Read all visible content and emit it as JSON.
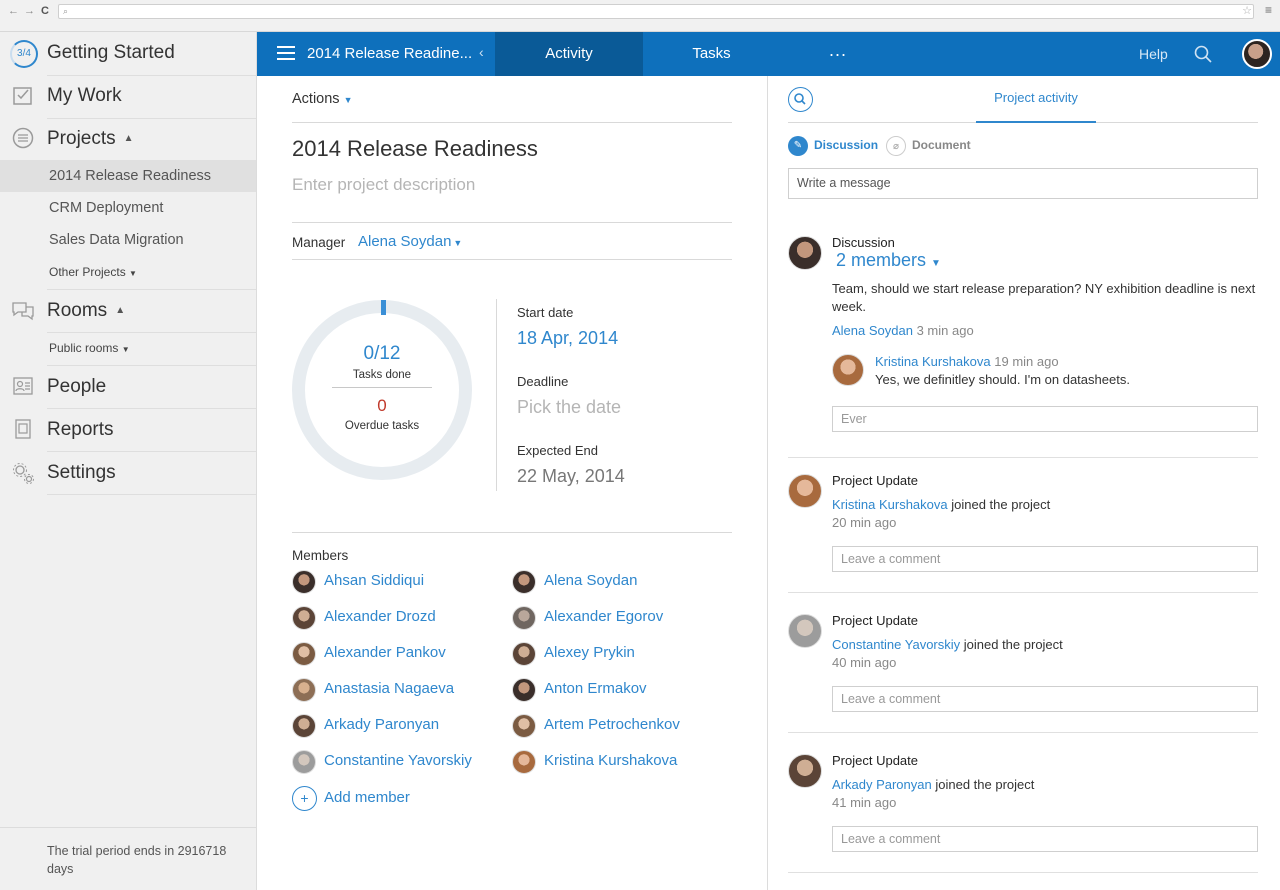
{
  "browser": {
    "nav_back": "←",
    "nav_fwd": "→",
    "reload": "C",
    "search_glyph": "⌕",
    "star": "☆",
    "menu": "≡"
  },
  "sidebar": {
    "progress": "3/4",
    "items": [
      {
        "label": "Getting Started"
      },
      {
        "label": "My Work"
      },
      {
        "label": "Projects"
      },
      {
        "label": "Rooms"
      },
      {
        "label": "People"
      },
      {
        "label": "Reports"
      },
      {
        "label": "Settings"
      }
    ],
    "projects": [
      "2014 Release Readiness",
      "CRM Deployment",
      "Sales Data Migration"
    ],
    "other_projects": "Other Projects",
    "public_rooms": "Public rooms",
    "trial": "The trial period ends in 2916718 days"
  },
  "topbar": {
    "project_title": "2014 Release Readine...",
    "tab_activity": "Activity",
    "tab_tasks": "Tasks",
    "more": "...",
    "help": "Help"
  },
  "project": {
    "actions": "Actions",
    "title": "2014 Release Readiness",
    "description_placeholder": "Enter project description",
    "manager_label": "Manager",
    "manager": "Alena Soydan",
    "tasks_done_value": "0/12",
    "tasks_done_label": "Tasks done",
    "overdue_value": "0",
    "overdue_label": "Overdue tasks",
    "start_label": "Start date",
    "start_value": "18 Apr, 2014",
    "deadline_label": "Deadline",
    "deadline_value": "Pick the date",
    "expected_label": "Expected End",
    "expected_value": "22 May, 2014",
    "members_label": "Members",
    "members": [
      "Ahsan Siddiqui",
      "Alena Soydan",
      "Alexander Drozd",
      "Alexander Egorov",
      "Alexander Pankov",
      "Alexey Prykin",
      "Anastasia Nagaeva",
      "Anton Ermakov",
      "Arkady Paronyan",
      "Artem Petrochenkov",
      "Constantine Yavorskiy",
      "Kristina Kurshakova"
    ],
    "add_member": "Add member"
  },
  "activity": {
    "tab": "Project activity",
    "discussion_tab": "Discussion",
    "document_tab": "Document",
    "message_placeholder": "Write a message",
    "discussion": {
      "title": "Discussion",
      "members": "2 members",
      "text": "Team, should we start release preparation? NY exhibition deadline is next week.",
      "author": "Alena Soydan",
      "time": "3 min ago",
      "reply_author": "Kristina Kurshakova",
      "reply_time": "19 min ago",
      "reply_text": "Yes, we definitley should. I'm on datasheets.",
      "reply_input": "Ever"
    },
    "updates": [
      {
        "title": "Project Update",
        "name": "Kristina Kurshakova",
        "action": "joined the project",
        "time": "20 min ago",
        "comment": "Leave a comment"
      },
      {
        "title": "Project Update",
        "name": "Constantine Yavorskiy",
        "action": "joined the project",
        "time": "40 min ago",
        "comment": "Leave a comment"
      },
      {
        "title": "Project Update",
        "name": "Arkady Paronyan",
        "action": "joined the project",
        "time": "41 min ago",
        "comment": "Leave a comment"
      }
    ]
  }
}
